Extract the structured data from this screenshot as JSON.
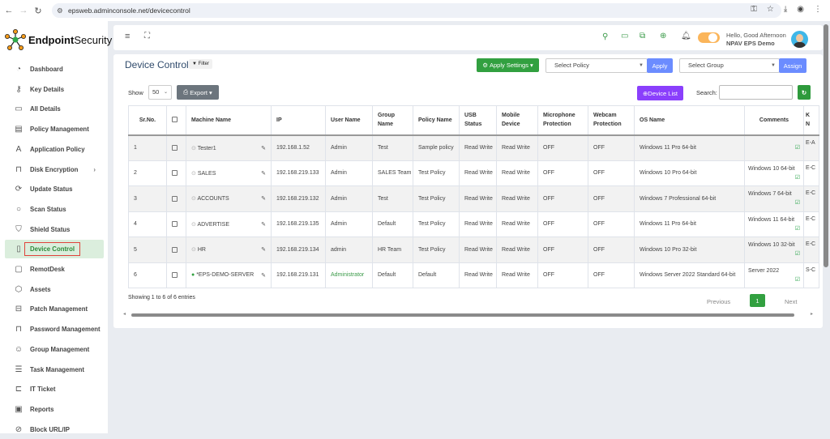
{
  "browser": {
    "url": "epsweb.adminconsole.net/devicecontrol"
  },
  "brand": {
    "bold": "Endpoint",
    "light": "Security"
  },
  "sidebar": {
    "items": [
      {
        "label": "Dashboard",
        "icon": "dashboard-icon",
        "glyph": "◔"
      },
      {
        "label": "Key Details",
        "icon": "key-icon",
        "glyph": "⚷"
      },
      {
        "label": "All Details",
        "icon": "monitor-icon",
        "glyph": "▭"
      },
      {
        "label": "Policy Management",
        "icon": "document-icon",
        "glyph": "▤"
      },
      {
        "label": "Application Policy",
        "icon": "letter-a-icon",
        "glyph": "A"
      },
      {
        "label": "Disk Encryption",
        "icon": "lock-icon",
        "glyph": "⊓",
        "chevron": "›"
      },
      {
        "label": "Update Status",
        "icon": "refresh-icon",
        "glyph": "⟳"
      },
      {
        "label": "Scan Status",
        "icon": "search-icon",
        "glyph": "○"
      },
      {
        "label": "Shield Status",
        "icon": "shield-icon",
        "glyph": "⛉"
      },
      {
        "label": "Device Control",
        "icon": "device-icon",
        "glyph": "▯",
        "active": true
      },
      {
        "label": "RemotDesk",
        "icon": "remote-desktop-icon",
        "glyph": "▢"
      },
      {
        "label": "Assets",
        "icon": "box-icon",
        "glyph": "⬡"
      },
      {
        "label": "Patch Management",
        "icon": "patch-icon",
        "glyph": "⊟"
      },
      {
        "label": "Password Management",
        "icon": "lock-icon",
        "glyph": "⊓"
      },
      {
        "label": "Group Management",
        "icon": "group-icon",
        "glyph": "☺"
      },
      {
        "label": "Task Management",
        "icon": "list-icon",
        "glyph": "☰"
      },
      {
        "label": "IT Ticket",
        "icon": "ticket-icon",
        "glyph": "⊏"
      },
      {
        "label": "Reports",
        "icon": "report-icon",
        "glyph": "▣"
      },
      {
        "label": "Block URL/IP",
        "icon": "block-icon",
        "glyph": "⊘"
      }
    ]
  },
  "header": {
    "greeting": "Hello, Good Afternoon",
    "user": "NPAV EPS Demo"
  },
  "page": {
    "title": "Device Control",
    "filter": "Filter",
    "apply_settings": "Apply Settings",
    "select_policy": "Select Policy",
    "apply": "Apply",
    "select_group": "Select Group",
    "assign": "Assign",
    "show": "Show",
    "page_size": "50",
    "export": "Export",
    "device_list": "Device List",
    "search_label": "Search:",
    "search_value": "",
    "showing": "Showing 1 to 6 of 6 entries",
    "previous": "Previous",
    "page": "1",
    "next": "Next"
  },
  "colors": {
    "green": "#32a040",
    "purple": "#8a3ffc",
    "blue": "#6b8cff",
    "gray": "#6c757d",
    "active_bg": "#dbeedd"
  },
  "table": {
    "columns": [
      "Sr.No.",
      "",
      "Machine Name",
      "IP",
      "User Name",
      "Group Name",
      "Policy Name",
      "USB Status",
      "Mobile Device",
      "Microphone Protection",
      "Webcam Protection",
      "OS Name",
      "Comments",
      "K N"
    ],
    "rows": [
      {
        "sr": "1",
        "machine": "Tester1",
        "online": false,
        "ip": "192.168.1.52",
        "user": "Admin",
        "group": "Test",
        "policy": "Sample policy",
        "usb": "Read Write",
        "mobile": "Read Write",
        "mic": "OFF",
        "webcam": "OFF",
        "os": "Windows 11 Pro 64-bit",
        "comment": "",
        "k": "E-A"
      },
      {
        "sr": "2",
        "machine": "SALES",
        "online": false,
        "ip": "192.168.219.133",
        "user": "Admin",
        "group": "SALES Team",
        "policy": "Test Policy",
        "usb": "Read Write",
        "mobile": "Read Write",
        "mic": "OFF",
        "webcam": "OFF",
        "os": "Windows 10 Pro 64-bit",
        "comment": "Windows 10 64-bit",
        "k": "E-C"
      },
      {
        "sr": "3",
        "machine": "ACCOUNTS",
        "online": false,
        "ip": "192.168.219.132",
        "user": "Admin",
        "group": "Test",
        "policy": "Test Policy",
        "usb": "Read Write",
        "mobile": "Read Write",
        "mic": "OFF",
        "webcam": "OFF",
        "os": "Windows 7 Professional 64-bit",
        "comment": "Windows 7 64-bit",
        "k": "E-C"
      },
      {
        "sr": "4",
        "machine": "ADVERTISE",
        "online": false,
        "ip": "192.168.219.135",
        "user": "Admin",
        "group": "Default",
        "policy": "Test Policy",
        "usb": "Read Write",
        "mobile": "Read Write",
        "mic": "OFF",
        "webcam": "OFF",
        "os": "Windows 11 Pro 64-bit",
        "comment": "Windows 11 64-bit",
        "k": "E-C"
      },
      {
        "sr": "5",
        "machine": "HR",
        "online": false,
        "ip": "192.168.219.134",
        "user": "admin",
        "group": "HR Team",
        "policy": "Test Policy",
        "usb": "Read Write",
        "mobile": "Read Write",
        "mic": "OFF",
        "webcam": "OFF",
        "os": "Windows 10 Pro 32-bit",
        "comment": "Windows 10 32-bit",
        "k": "E-C"
      },
      {
        "sr": "6",
        "machine": "*EPS-DEMO-SERVER",
        "online": true,
        "ip": "192.168.219.131",
        "user": "Administrator",
        "user_green": true,
        "group": "Default",
        "policy": "Default",
        "usb": "Read Write",
        "mobile": "Read Write",
        "mic": "OFF",
        "webcam": "OFF",
        "os": "Windows Server 2022 Standard 64-bit",
        "comment": "Server 2022",
        "k": "S-C"
      }
    ]
  }
}
